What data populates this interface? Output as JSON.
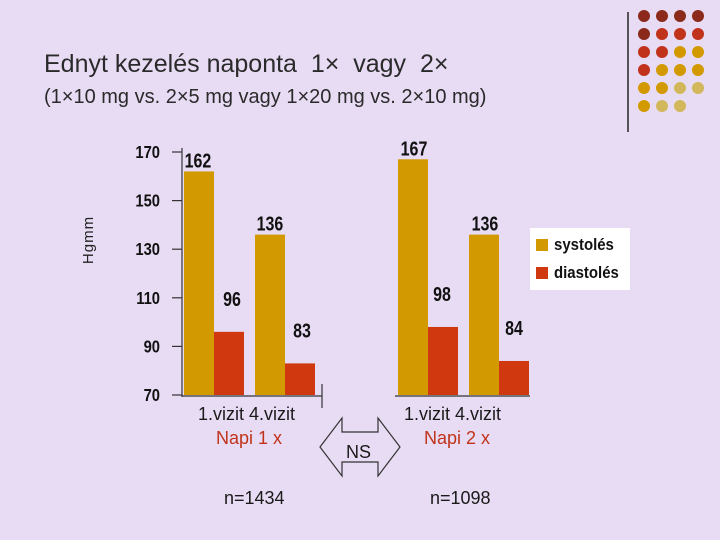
{
  "slide": {
    "title": "Ednyt kezelés naponta  1×  vagy  2×",
    "subtitle": "(1×10 mg vs. 2×5 mg vagy 1×20 mg vs. 2×10 mg)",
    "accent_line_color": "#555555"
  },
  "decor_dots": {
    "colors": [
      "#8b2a1a",
      "#c0331a",
      "#d29a00",
      "#d2b85a"
    ]
  },
  "groups": [
    {
      "visits": "1.vizit  4.vizit",
      "dosage": "Napi 1 x",
      "n": "n=1434"
    },
    {
      "visits": "1.vizit  4.vizit",
      "dosage": "Napi 2 x",
      "n": "n=1098"
    }
  ],
  "comparison": {
    "label": "NS"
  },
  "chart_data": {
    "type": "bar",
    "ylabel": "Hgmm",
    "yticks": [
      170,
      150,
      130,
      110,
      90,
      70
    ],
    "ylim": [
      70,
      170
    ],
    "categories": [
      "1.vizit",
      "4.vizit",
      "1.vizit",
      "4.vizit"
    ],
    "series": [
      {
        "name": "systolés",
        "color": "#d29a00",
        "values": [
          162,
          136,
          167,
          136
        ]
      },
      {
        "name": "diastolés",
        "color": "#d0380f",
        "values": [
          96,
          83,
          98,
          84
        ]
      }
    ],
    "legend_position": "right"
  }
}
